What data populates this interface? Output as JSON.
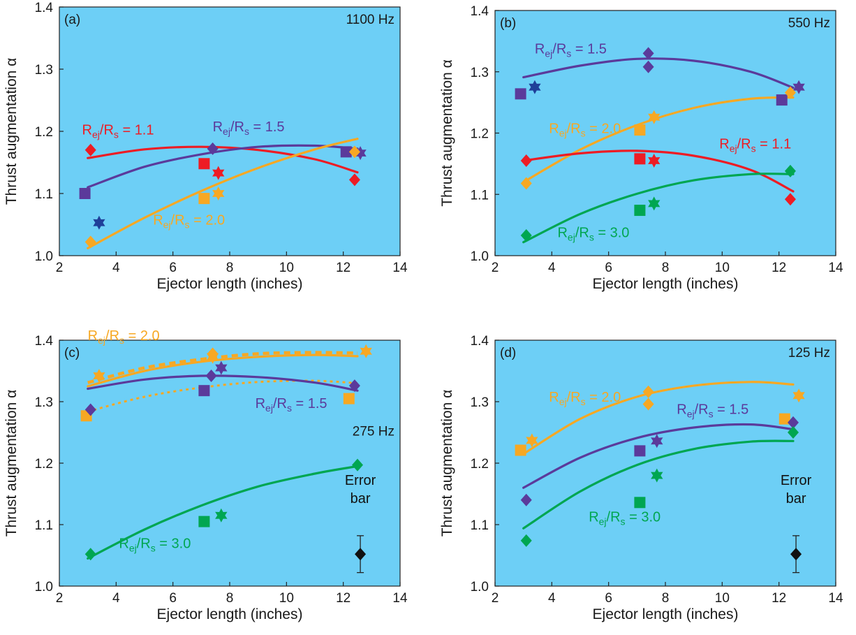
{
  "colors": {
    "panel_bg": "#6dcff6",
    "red": "#ed1c24",
    "purple": "#5b3a9b",
    "orange": "#f7a823",
    "green": "#00a651",
    "navy": "#1f3f99",
    "black": "#111111"
  },
  "marker_legend_note": "",
  "chart_data": [
    {
      "type": "scatter",
      "panel": "(a)",
      "freq": "1100 Hz",
      "xlabel": "Ejector length (inches)",
      "ylabel": "Thrust augmentation α",
      "xlim": [
        2,
        14
      ],
      "ylim": [
        1.0,
        1.4
      ],
      "xticks": [
        "2",
        "4",
        "6",
        "8",
        "10",
        "12",
        "14"
      ],
      "yticks": [
        "1.0",
        "1.1",
        "1.2",
        "1.3",
        "1.4"
      ],
      "series": [
        {
          "color": "red",
          "markers": [
            {
              "shape": "diamond",
              "x": 3.1,
              "y": 1.17
            },
            {
              "shape": "square",
              "x": 7.1,
              "y": 1.148
            },
            {
              "shape": "star",
              "x": 7.6,
              "y": 1.133
            },
            {
              "shape": "diamond",
              "x": 12.4,
              "y": 1.122
            }
          ],
          "curve": {
            "x": [
              3.0,
              5.0,
              7.0,
              9.0,
              11.0,
              12.5
            ],
            "y": [
              1.157,
              1.171,
              1.175,
              1.17,
              1.155,
              1.134
            ],
            "dash": false
          }
        },
        {
          "color": "purple",
          "markers": [
            {
              "shape": "square",
              "x": 2.9,
              "y": 1.1
            },
            {
              "shape": "diamond",
              "x": 7.4,
              "y": 1.172
            },
            {
              "shape": "square",
              "x": 12.1,
              "y": 1.167
            },
            {
              "shape": "star",
              "x": 12.6,
              "y": 1.165
            }
          ],
          "curve": {
            "x": [
              3.0,
              5.0,
              7.0,
              9.0,
              11.0,
              12.5
            ],
            "y": [
              1.11,
              1.143,
              1.163,
              1.175,
              1.177,
              1.172
            ],
            "dash": false
          }
        },
        {
          "color": "orange",
          "markers": [
            {
              "shape": "diamond",
              "x": 3.1,
              "y": 1.022
            },
            {
              "shape": "square",
              "x": 7.1,
              "y": 1.092
            },
            {
              "shape": "star",
              "x": 7.6,
              "y": 1.1
            },
            {
              "shape": "diamond",
              "x": 12.4,
              "y": 1.167
            }
          ],
          "curve": {
            "x": [
              3.0,
              5.0,
              7.0,
              9.0,
              11.0,
              12.5
            ],
            "y": [
              1.012,
              1.061,
              1.104,
              1.141,
              1.171,
              1.188
            ],
            "dash": false
          }
        },
        {
          "color": "navy",
          "markers": [
            {
              "shape": "star",
              "x": 3.4,
              "y": 1.053
            }
          ],
          "curve": null
        }
      ],
      "annotations": [
        {
          "text": "1.1",
          "color": "red",
          "x": 2.8,
          "y": 1.195
        },
        {
          "text": "1.5",
          "color": "purple",
          "x": 7.4,
          "y": 1.2
        },
        {
          "text": "2.0",
          "color": "orange",
          "x": 5.3,
          "y": 1.05
        }
      ]
    },
    {
      "type": "scatter",
      "panel": "(b)",
      "freq": "550 Hz",
      "xlabel": "Ejector length (inches)",
      "ylabel": "Thrust augmentation α",
      "xlim": [
        2,
        14
      ],
      "ylim": [
        1.0,
        1.4
      ],
      "xticks": [
        "2",
        "4",
        "6",
        "8",
        "10",
        "12",
        "14"
      ],
      "yticks": [
        "1.0",
        "1.1",
        "1.2",
        "1.3",
        "1.4"
      ],
      "series": [
        {
          "color": "purple",
          "markers": [
            {
              "shape": "square",
              "x": 2.9,
              "y": 1.264
            },
            {
              "shape": "diamond",
              "x": 7.4,
              "y": 1.33
            },
            {
              "shape": "diamond",
              "x": 7.4,
              "y": 1.308
            },
            {
              "shape": "square",
              "x": 12.1,
              "y": 1.254
            },
            {
              "shape": "star",
              "x": 12.7,
              "y": 1.275
            }
          ],
          "curve": {
            "x": [
              3.0,
              5.0,
              7.0,
              9.0,
              11.0,
              12.5
            ],
            "y": [
              1.291,
              1.31,
              1.321,
              1.318,
              1.3,
              1.274
            ],
            "dash": false
          }
        },
        {
          "color": "orange",
          "markers": [
            {
              "shape": "diamond",
              "x": 3.1,
              "y": 1.118
            },
            {
              "shape": "square",
              "x": 7.1,
              "y": 1.205
            },
            {
              "shape": "star",
              "x": 7.6,
              "y": 1.226
            },
            {
              "shape": "diamond",
              "x": 12.4,
              "y": 1.266
            }
          ],
          "curve": {
            "x": [
              3.0,
              5.0,
              7.0,
              9.0,
              11.0,
              12.5
            ],
            "y": [
              1.12,
              1.173,
              1.213,
              1.241,
              1.256,
              1.258
            ],
            "dash": false
          }
        },
        {
          "color": "red",
          "markers": [
            {
              "shape": "diamond",
              "x": 3.1,
              "y": 1.155
            },
            {
              "shape": "square",
              "x": 7.1,
              "y": 1.158
            },
            {
              "shape": "star",
              "x": 7.6,
              "y": 1.155
            },
            {
              "shape": "diamond",
              "x": 12.4,
              "y": 1.092
            }
          ],
          "curve": {
            "x": [
              3.0,
              5.0,
              7.0,
              9.0,
              11.0,
              12.5
            ],
            "y": [
              1.155,
              1.167,
              1.171,
              1.163,
              1.14,
              1.105
            ],
            "dash": false
          }
        },
        {
          "color": "green",
          "markers": [
            {
              "shape": "diamond",
              "x": 3.1,
              "y": 1.033
            },
            {
              "shape": "square",
              "x": 7.1,
              "y": 1.074
            },
            {
              "shape": "star",
              "x": 7.6,
              "y": 1.085
            },
            {
              "shape": "diamond",
              "x": 12.4,
              "y": 1.138
            }
          ],
          "curve": {
            "x": [
              3.0,
              5.0,
              7.0,
              9.0,
              11.0,
              12.5
            ],
            "y": [
              1.022,
              1.068,
              1.101,
              1.123,
              1.133,
              1.133
            ],
            "dash": false
          }
        },
        {
          "color": "navy",
          "markers": [
            {
              "shape": "star",
              "x": 3.4,
              "y": 1.275
            }
          ],
          "curve": null
        }
      ],
      "annotations": [
        {
          "text": "1.5",
          "color": "purple",
          "x": 3.4,
          "y": 1.33
        },
        {
          "text": "2.0",
          "color": "orange",
          "x": 3.9,
          "y": 1.2
        },
        {
          "text": "1.1",
          "color": "red",
          "x": 9.9,
          "y": 1.175
        },
        {
          "text": "3.0",
          "color": "green",
          "x": 4.2,
          "y": 1.03
        }
      ]
    },
    {
      "type": "scatter",
      "panel": "(c)",
      "freq": "275 Hz",
      "xlabel": "Ejector length (inches)",
      "ylabel": "Thrust augmentation α",
      "xlim": [
        2,
        14
      ],
      "ylim": [
        1.0,
        1.4
      ],
      "xticks": [
        "2",
        "4",
        "6",
        "8",
        "10",
        "12",
        "14"
      ],
      "yticks": [
        "1.0",
        "1.1",
        "1.2",
        "1.3",
        "1.4"
      ],
      "series": [
        {
          "color": "orange",
          "markers": [
            {
              "shape": "square",
              "x": 2.95,
              "y": 1.277
            },
            {
              "shape": "star",
              "x": 3.4,
              "y": 1.342
            },
            {
              "shape": "diamond",
              "x": 7.4,
              "y": 1.378
            },
            {
              "shape": "star",
              "x": 7.4,
              "y": 1.373
            },
            {
              "shape": "square",
              "x": 12.2,
              "y": 1.305
            },
            {
              "shape": "star",
              "x": 12.8,
              "y": 1.382
            }
          ],
          "curve": {
            "x": [
              3.0,
              5.0,
              7.0,
              9.0,
              11.0,
              12.5
            ],
            "y": [
              1.331,
              1.355,
              1.369,
              1.378,
              1.38,
              1.379
            ],
            "dash": true
          }
        },
        {
          "color": "orange",
          "markers": [],
          "curve": {
            "x": [
              3.0,
              5.0,
              7.0,
              9.0,
              11.0,
              12.5
            ],
            "y": [
              1.325,
              1.35,
              1.365,
              1.373,
              1.376,
              1.374
            ],
            "dash": false
          }
        },
        {
          "color": "orange",
          "markers": [],
          "curve": {
            "x": [
              3.0,
              5.0,
              7.0,
              9.0,
              11.0,
              12.5
            ],
            "y": [
              1.284,
              1.308,
              1.323,
              1.332,
              1.334,
              1.33
            ],
            "dash": "dot"
          }
        },
        {
          "color": "purple",
          "markers": [
            {
              "shape": "diamond",
              "x": 3.1,
              "y": 1.287
            },
            {
              "shape": "square",
              "x": 7.1,
              "y": 1.318
            },
            {
              "shape": "diamond",
              "x": 7.35,
              "y": 1.342
            },
            {
              "shape": "star",
              "x": 7.7,
              "y": 1.355
            },
            {
              "shape": "diamond",
              "x": 12.4,
              "y": 1.326
            }
          ],
          "curve": {
            "x": [
              3.0,
              5.0,
              7.0,
              9.0,
              11.0,
              12.5
            ],
            "y": [
              1.321,
              1.336,
              1.342,
              1.34,
              1.331,
              1.318
            ],
            "dash": false
          }
        },
        {
          "color": "green",
          "markers": [
            {
              "shape": "diamond",
              "x": 3.1,
              "y": 1.052
            },
            {
              "shape": "square",
              "x": 7.1,
              "y": 1.105
            },
            {
              "shape": "star",
              "x": 7.7,
              "y": 1.115
            },
            {
              "shape": "diamond",
              "x": 12.5,
              "y": 1.197
            }
          ],
          "curve": {
            "x": [
              3.0,
              5.0,
              7.0,
              9.0,
              11.0,
              12.5
            ],
            "y": [
              1.045,
              1.092,
              1.131,
              1.162,
              1.183,
              1.195
            ],
            "dash": false
          }
        },
        {
          "color": "black",
          "markers": [
            {
              "shape": "diamond",
              "x": 12.6,
              "y": 1.052,
              "err": 0.03
            }
          ],
          "curve": null
        }
      ],
      "annotations": [
        {
          "text": "2.0",
          "color": "orange",
          "x": 3.0,
          "y": 1.4
        },
        {
          "text": "1.5",
          "color": "purple",
          "x": 8.9,
          "y": 1.29
        },
        {
          "text": "3.0",
          "color": "green",
          "x": 4.1,
          "y": 1.062
        }
      ],
      "error_label": [
        "Error",
        "bar"
      ]
    },
    {
      "type": "scatter",
      "panel": "(d)",
      "freq": "125 Hz",
      "xlabel": "Ejector length (inches)",
      "ylabel": "Thrust augmentation α",
      "xlim": [
        2,
        14
      ],
      "ylim": [
        1.0,
        1.4
      ],
      "xticks": [
        "2",
        "4",
        "6",
        "8",
        "10",
        "12",
        "14"
      ],
      "yticks": [
        "1.0",
        "1.1",
        "1.2",
        "1.3",
        "1.4"
      ],
      "series": [
        {
          "color": "orange",
          "markers": [
            {
              "shape": "square",
              "x": 2.9,
              "y": 1.221
            },
            {
              "shape": "star",
              "x": 3.3,
              "y": 1.237
            },
            {
              "shape": "diamond",
              "x": 7.4,
              "y": 1.316
            },
            {
              "shape": "diamond",
              "x": 7.4,
              "y": 1.296
            },
            {
              "shape": "square",
              "x": 12.2,
              "y": 1.272
            },
            {
              "shape": "star",
              "x": 12.7,
              "y": 1.31
            }
          ],
          "curve": {
            "x": [
              3.0,
              5.0,
              7.0,
              9.0,
              11.0,
              12.5
            ],
            "y": [
              1.215,
              1.272,
              1.308,
              1.326,
              1.332,
              1.328
            ],
            "dash": false
          }
        },
        {
          "color": "purple",
          "markers": [
            {
              "shape": "diamond",
              "x": 3.1,
              "y": 1.14
            },
            {
              "shape": "square",
              "x": 7.1,
              "y": 1.22
            },
            {
              "shape": "star",
              "x": 7.7,
              "y": 1.236
            },
            {
              "shape": "diamond",
              "x": 12.5,
              "y": 1.266
            }
          ],
          "curve": {
            "x": [
              3.0,
              5.0,
              7.0,
              9.0,
              11.0,
              12.5
            ],
            "y": [
              1.16,
              1.209,
              1.241,
              1.258,
              1.263,
              1.255
            ],
            "dash": false
          }
        },
        {
          "color": "green",
          "markers": [
            {
              "shape": "diamond",
              "x": 3.1,
              "y": 1.074
            },
            {
              "shape": "square",
              "x": 7.1,
              "y": 1.136
            },
            {
              "shape": "star",
              "x": 7.7,
              "y": 1.18
            },
            {
              "shape": "diamond",
              "x": 12.5,
              "y": 1.25
            }
          ],
          "curve": {
            "x": [
              3.0,
              5.0,
              7.0,
              9.0,
              11.0,
              12.5
            ],
            "y": [
              1.094,
              1.154,
              1.197,
              1.223,
              1.235,
              1.236
            ],
            "dash": false
          }
        },
        {
          "color": "black",
          "markers": [
            {
              "shape": "diamond",
              "x": 12.6,
              "y": 1.052,
              "err": 0.03
            }
          ],
          "curve": null
        }
      ],
      "annotations": [
        {
          "text": "2.0",
          "color": "orange",
          "x": 3.9,
          "y": 1.3
        },
        {
          "text": "1.5",
          "color": "purple",
          "x": 8.4,
          "y": 1.28
        },
        {
          "text": "3.0",
          "color": "green",
          "x": 5.3,
          "y": 1.105
        }
      ],
      "error_label": [
        "Error",
        "bar"
      ]
    }
  ]
}
